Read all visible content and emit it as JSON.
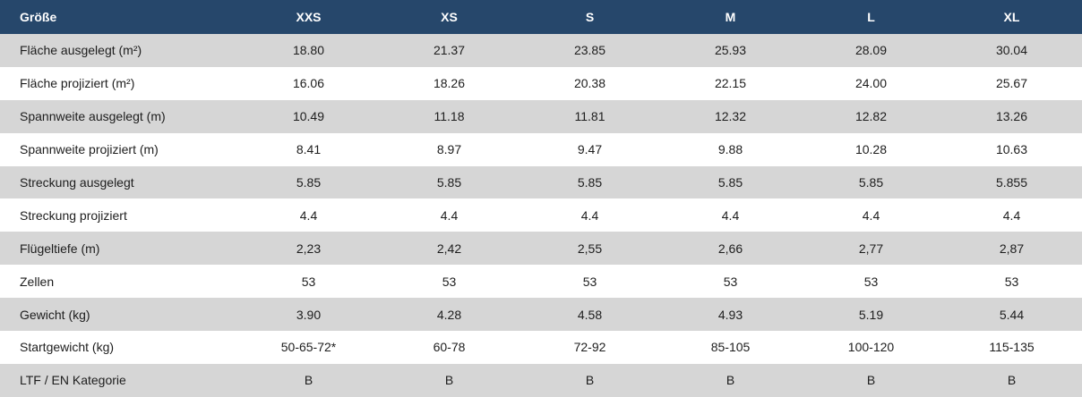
{
  "table": {
    "header": [
      "Größe",
      "XXS",
      "XS",
      "S",
      "M",
      "L",
      "XL"
    ],
    "rows": [
      {
        "label": "Fläche ausgelegt (m²)",
        "values": [
          "18.80",
          "21.37",
          "23.85",
          "25.93",
          "28.09",
          "30.04"
        ]
      },
      {
        "label": "Fläche projiziert (m²)",
        "values": [
          "16.06",
          "18.26",
          "20.38",
          "22.15",
          "24.00",
          "25.67"
        ]
      },
      {
        "label": "Spannweite ausgelegt (m)",
        "values": [
          "10.49",
          "11.18",
          "11.81",
          "12.32",
          "12.82",
          "13.26"
        ]
      },
      {
        "label": "Spannweite projiziert (m)",
        "values": [
          "8.41",
          "8.97",
          "9.47",
          "9.88",
          "10.28",
          "10.63"
        ]
      },
      {
        "label": "Streckung ausgelegt",
        "values": [
          "5.85",
          "5.85",
          "5.85",
          "5.85",
          "5.85",
          "5.855"
        ]
      },
      {
        "label": "Streckung projiziert",
        "values": [
          "4.4",
          "4.4",
          "4.4",
          "4.4",
          "4.4",
          "4.4"
        ]
      },
      {
        "label": "Flügeltiefe (m)",
        "values": [
          "2,23",
          "2,42",
          "2,55",
          "2,66",
          "2,77",
          "2,87"
        ]
      },
      {
        "label": "Zellen",
        "values": [
          "53",
          "53",
          "53",
          "53",
          "53",
          "53"
        ]
      },
      {
        "label": "Gewicht (kg)",
        "values": [
          "3.90",
          "4.28",
          "4.58",
          "4.93",
          "5.19",
          "5.44"
        ]
      },
      {
        "label": "Startgewicht (kg)",
        "values": [
          "50-65-72*",
          "60-78",
          "72-92",
          "85-105",
          "100-120",
          "115-135"
        ]
      },
      {
        "label": "LTF / EN Kategorie",
        "values": [
          "B",
          "B",
          "B",
          "B",
          "B",
          "B"
        ]
      }
    ]
  },
  "colors": {
    "header_bg": "#26476b",
    "header_text": "#ffffff",
    "row_shaded": "#d6d6d6",
    "row_plain": "#ffffff",
    "text": "#1d1d1d"
  }
}
